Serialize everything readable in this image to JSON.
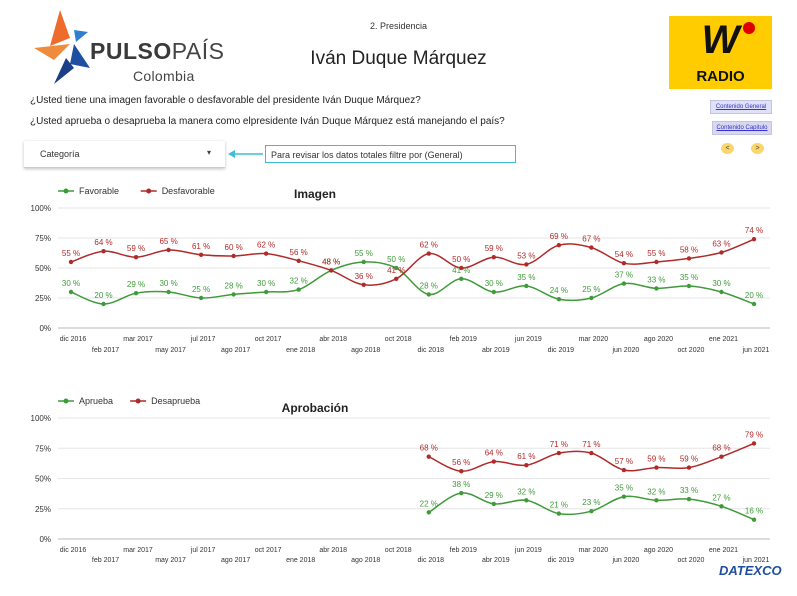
{
  "header": {
    "logo_brand_bold": "PULSO",
    "logo_brand_light": "PAÍS",
    "logo_sub": "Colombia",
    "section": "2. Presidencia",
    "title": "Iván Duque Márquez",
    "radio_logo": "W",
    "radio_label": "RADIO",
    "datexco": "DATEXCO"
  },
  "questions": {
    "q1": "¿Usted tiene una imagen favorable o desfavorable del presidente Iván Duque Márquez?",
    "q2": "¿Usted aprueba o desaprueba la manera como elpresidente Iván Duque Márquez está manejando el país?"
  },
  "nav": {
    "general_label": "Contenido General",
    "capitulo_label": "Contenido Capitulo",
    "prev_label": "<",
    "next_label": ">"
  },
  "filter": {
    "dropdown_label": "Categoría",
    "note": "Para revisar los datos totales filtre por (General)"
  },
  "colors": {
    "positive": "#3f9a3a",
    "negative": "#b02a2a",
    "grid": "#e6e6e6",
    "accent": "#3bbfd6"
  },
  "chart_data": [
    {
      "type": "line",
      "title": "Imagen",
      "x_ticks_top": [
        "dic 2016",
        "mar 2017",
        "jul 2017",
        "oct 2017",
        "abr 2018",
        "oct 2018",
        "feb 2019",
        "jun 2019",
        "mar 2020",
        "ago 2020",
        "ene 2021"
      ],
      "x_ticks_bottom": [
        "feb 2017",
        "may 2017",
        "ago 2017",
        "ene 2018",
        "ago 2018",
        "dic 2018",
        "abr 2019",
        "dic 2019",
        "jun 2020",
        "oct 2020",
        "jun 2021"
      ],
      "y_ticks": [
        "0%",
        "25%",
        "50%",
        "75%",
        "100%"
      ],
      "ylim": [
        0,
        100
      ],
      "legend_position": "top-left",
      "series": [
        {
          "name": "Favorable",
          "values": [
            30,
            20,
            29,
            30,
            25,
            28,
            30,
            32,
            48,
            55,
            50,
            28,
            41,
            30,
            35,
            24,
            25,
            37,
            33,
            35,
            30,
            20
          ]
        },
        {
          "name": "Desfavorable",
          "values": [
            55,
            64,
            59,
            65,
            61,
            60,
            62,
            56,
            48,
            36,
            41,
            62,
            50,
            59,
            53,
            69,
            67,
            54,
            55,
            58,
            63,
            74
          ]
        }
      ],
      "labels": {
        "Favorable": [
          "30 %",
          "20 %",
          "29 %",
          "30 %",
          "25 %",
          "28 %",
          "30 %",
          "32 %",
          "48 %",
          "55 %",
          "50 %",
          "28 %",
          "41 %",
          "30 %",
          "35 %",
          "24 %",
          "25 %",
          "37 %",
          "33 %",
          "35 %",
          "30 %",
          "20 %"
        ],
        "Desfavorable": [
          "55 %",
          "64 %",
          "59 %",
          "65 %",
          "61 %",
          "60 %",
          "62 %",
          "56 %",
          "48 %",
          "36 %",
          "41 %",
          "62 %",
          "50 %",
          "59 %",
          "53 %",
          "69 %",
          "67 %",
          "54 %",
          "55 %",
          "58 %",
          "63 %",
          "74 %"
        ]
      }
    },
    {
      "type": "line",
      "title": "Aprobación",
      "x_ticks_top": [
        "dic 2016",
        "mar 2017",
        "jul 2017",
        "oct 2017",
        "abr 2018",
        "oct 2018",
        "feb 2019",
        "jun 2019",
        "mar 2020",
        "ago 2020",
        "ene 2021"
      ],
      "x_ticks_bottom": [
        "feb 2017",
        "may 2017",
        "ago 2017",
        "ene 2018",
        "ago 2018",
        "dic 2018",
        "abr 2019",
        "dic 2019",
        "jun 2020",
        "oct 2020",
        "jun 2021"
      ],
      "y_ticks": [
        "0%",
        "25%",
        "50%",
        "75%",
        "100%"
      ],
      "ylim": [
        0,
        100
      ],
      "legend_position": "top-left",
      "series": [
        {
          "name": "Aprueba",
          "values": [
            null,
            null,
            null,
            null,
            null,
            null,
            null,
            null,
            null,
            null,
            null,
            22,
            38,
            29,
            32,
            21,
            23,
            35,
            32,
            33,
            27,
            16
          ]
        },
        {
          "name": "Desaprueba",
          "values": [
            null,
            null,
            null,
            null,
            null,
            null,
            null,
            null,
            null,
            null,
            null,
            68,
            56,
            64,
            61,
            71,
            71,
            57,
            59,
            59,
            68,
            79
          ]
        }
      ],
      "labels": {
        "Aprueba": [
          "",
          "",
          "",
          "",
          "",
          "",
          "",
          "",
          "",
          "",
          "",
          "22 %",
          "38 %",
          "29 %",
          "32 %",
          "21 %",
          "23 %",
          "35 %",
          "32 %",
          "33 %",
          "27 %",
          "16 %"
        ],
        "Desaprueba": [
          "",
          "",
          "",
          "",
          "",
          "",
          "",
          "",
          "",
          "",
          "",
          "68 %",
          "56 %",
          "64 %",
          "61 %",
          "71 %",
          "71 %",
          "57 %",
          "59 %",
          "59 %",
          "68 %",
          "79 %"
        ]
      }
    }
  ]
}
